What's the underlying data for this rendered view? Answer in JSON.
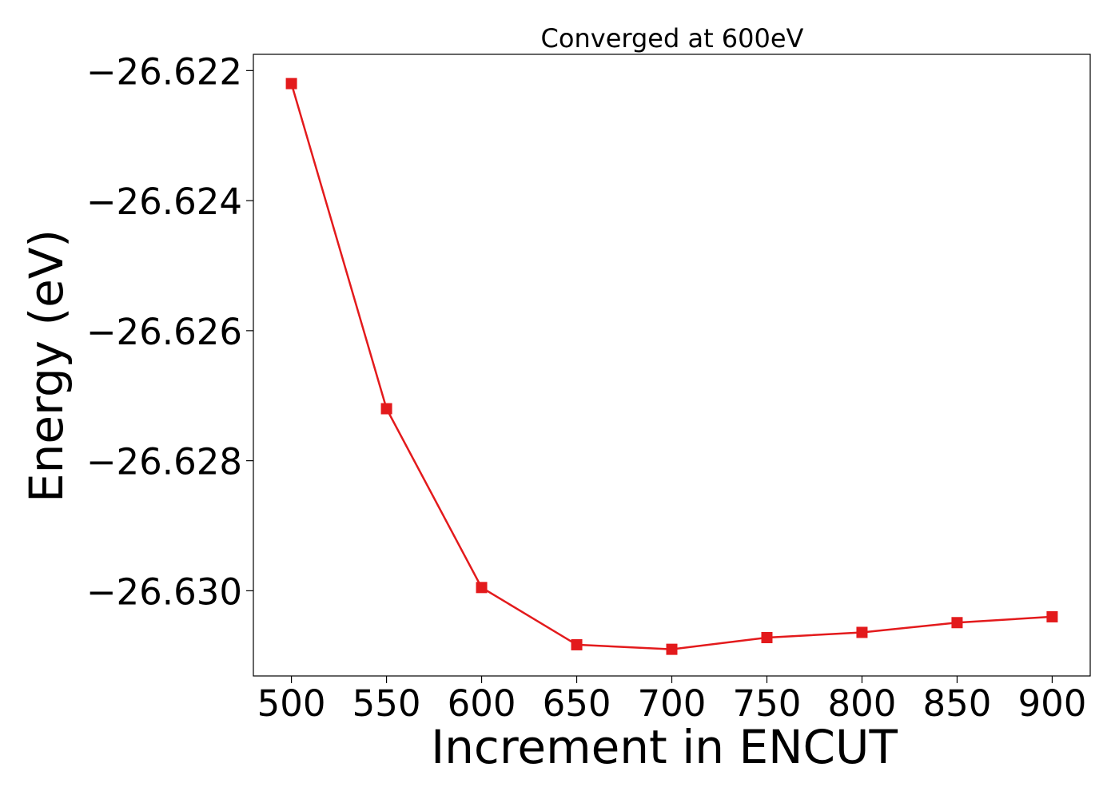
{
  "chart_data": {
    "type": "line",
    "title": "Converged at 600eV",
    "xlabel": "Increment in ENCUT",
    "ylabel": "Energy (eV)",
    "x": [
      500,
      550,
      600,
      650,
      700,
      750,
      800,
      850,
      900
    ],
    "series": [
      {
        "values": [
          -26.6222,
          -26.6272,
          -26.62995,
          -26.63083,
          -26.6309,
          -26.63072,
          -26.63064,
          -26.63049,
          -26.6304
        ],
        "color": "#e31a1c",
        "marker": "square"
      }
    ],
    "xticks": [
      500,
      550,
      600,
      650,
      700,
      750,
      800,
      850,
      900
    ],
    "xtick_labels": [
      "500",
      "550",
      "600",
      "650",
      "700",
      "750",
      "800",
      "850",
      "900"
    ],
    "yticks": [
      -26.622,
      -26.624,
      -26.626,
      -26.628,
      -26.63
    ],
    "ytick_labels": [
      "−26.622",
      "−26.624",
      "−26.626",
      "−26.628",
      "−26.630"
    ],
    "xlim": [
      480,
      920
    ],
    "ylim": [
      -26.63131,
      -26.62175
    ],
    "grid": false,
    "legend": "none"
  }
}
